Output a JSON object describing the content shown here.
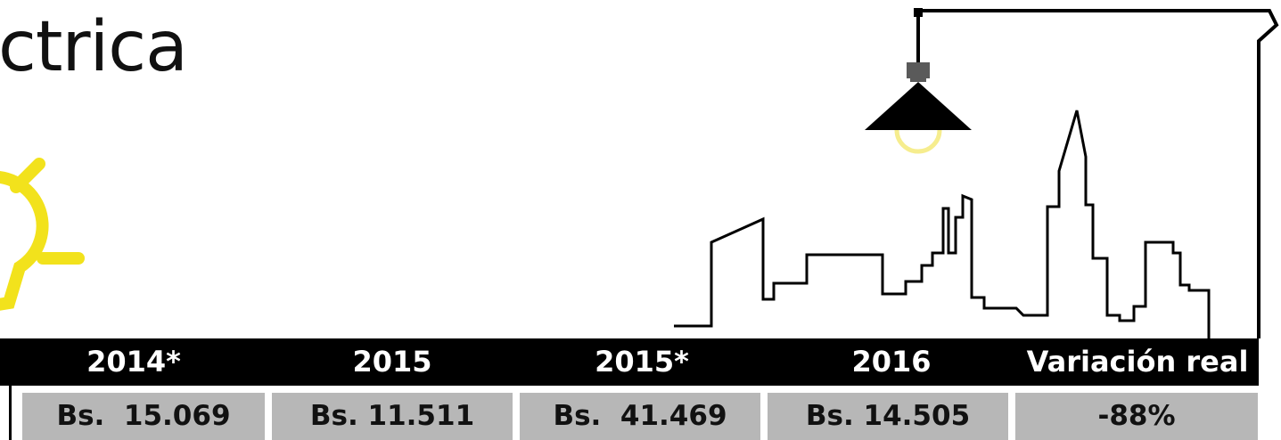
{
  "title": "ctrica",
  "table": {
    "headers": [
      "2014*",
      "2015",
      "2015*",
      "2016",
      "Variación real"
    ],
    "values": [
      "Bs.  15.069",
      "Bs. 11.511",
      "Bs.  41.469",
      "Bs. 14.505",
      "-88%"
    ]
  },
  "colors": {
    "bulb": "#f2e21c",
    "header_bg": "#000000",
    "cell_bg": "#b7b7b7"
  },
  "icons": [
    "lightbulb-icon",
    "ceiling-lamp-icon",
    "city-skyline-icon"
  ]
}
